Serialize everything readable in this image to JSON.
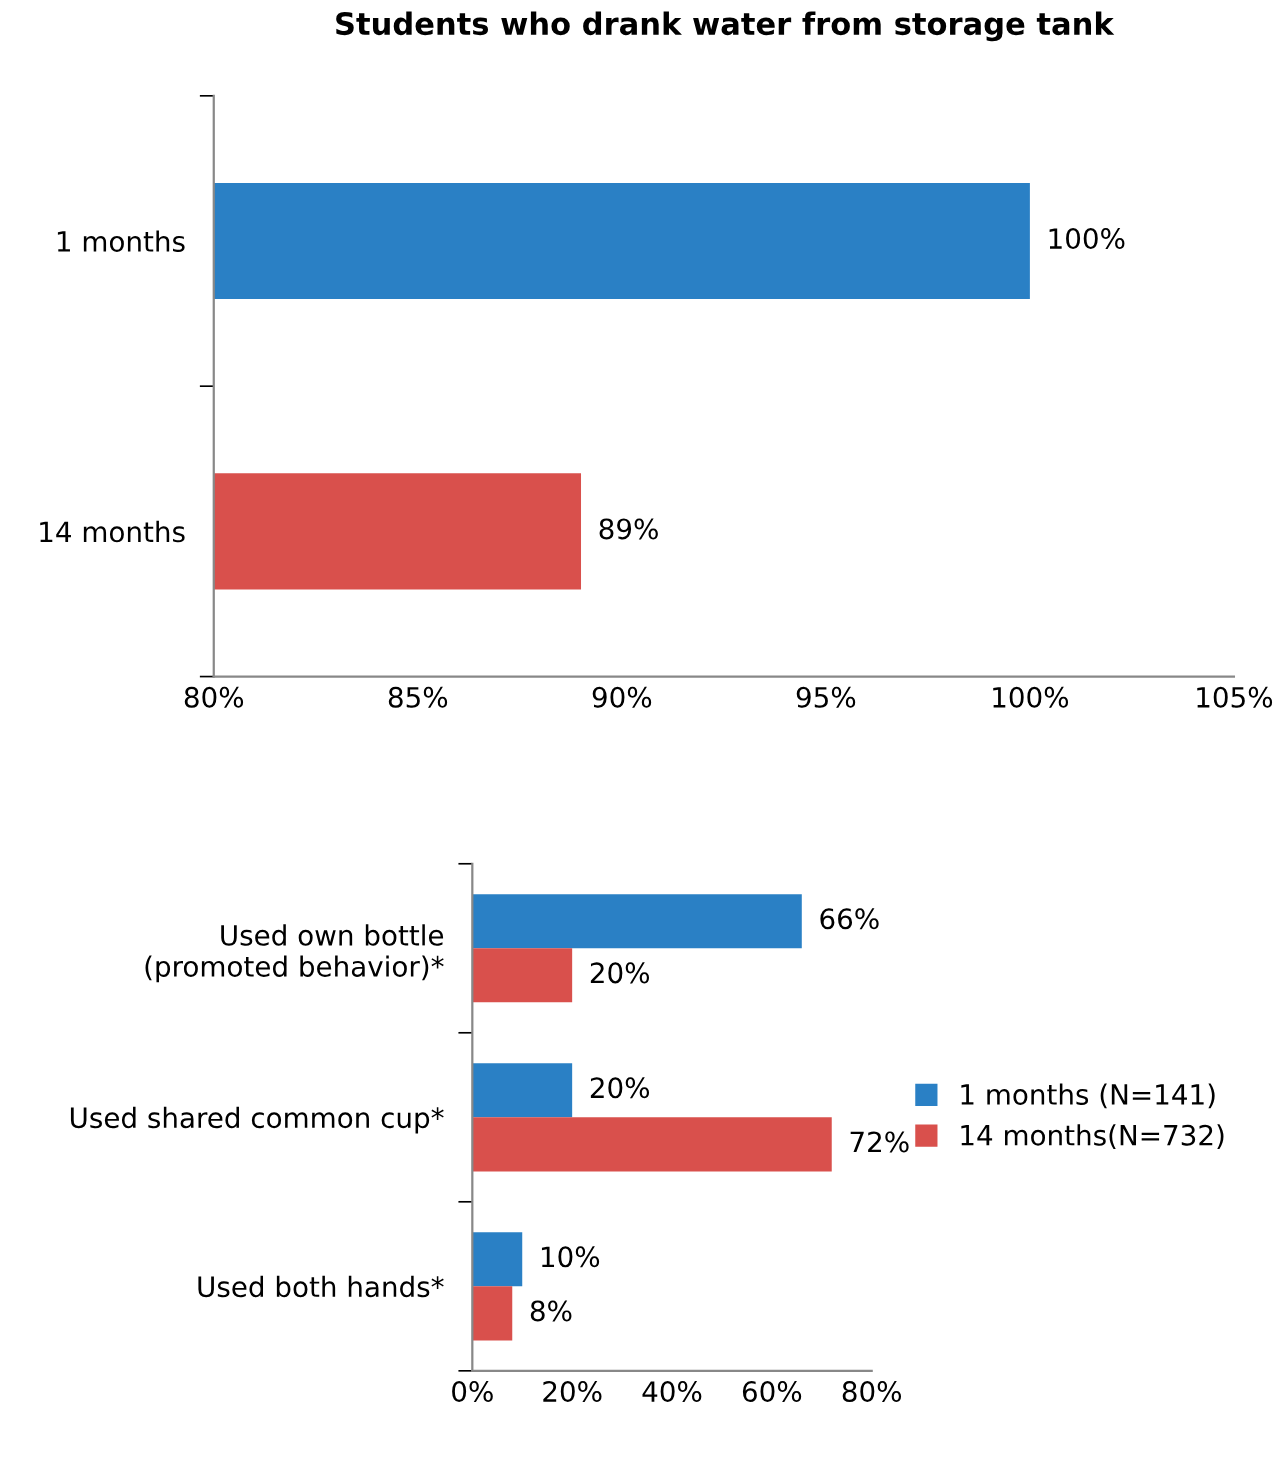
{
  "chart_data": [
    {
      "type": "bar",
      "orientation": "horizontal",
      "title": "Students who drank water from storage tank",
      "categories": [
        "1 months",
        "14 months"
      ],
      "values": [
        100,
        89
      ],
      "colors": [
        "#2a80c5",
        "#d9504c"
      ],
      "value_labels": [
        "100%",
        "89%"
      ],
      "xlim": [
        80,
        105
      ],
      "xticks": [
        {
          "value": 80,
          "label": "80%"
        },
        {
          "value": 85,
          "label": "85%"
        },
        {
          "value": 90,
          "label": "90%"
        },
        {
          "value": 95,
          "label": "95%"
        },
        {
          "value": 100,
          "label": "100%"
        },
        {
          "value": 105,
          "label": "105%"
        }
      ],
      "grid": false,
      "legend": false
    },
    {
      "type": "bar",
      "orientation": "horizontal",
      "categories": [
        "Used own bottle\n(promoted behavior)*",
        "Used shared common cup*",
        "Used both hands*"
      ],
      "series": [
        {
          "name": "1 months (N=141)",
          "color": "#2a80c5",
          "values": [
            66,
            20,
            10
          ],
          "value_labels": [
            "66%",
            "20%",
            "10%"
          ]
        },
        {
          "name": "14 months(N=732)",
          "color": "#d9504c",
          "values": [
            20,
            72,
            8
          ],
          "value_labels": [
            "20%",
            "72%",
            "8%"
          ]
        }
      ],
      "xlim": [
        0,
        80
      ],
      "xticks": [
        {
          "value": 0,
          "label": "0%"
        },
        {
          "value": 20,
          "label": "20%"
        },
        {
          "value": 40,
          "label": "40%"
        },
        {
          "value": 60,
          "label": "60%"
        },
        {
          "value": 80,
          "label": "80%"
        }
      ],
      "grid": false,
      "legend": "right"
    }
  ]
}
